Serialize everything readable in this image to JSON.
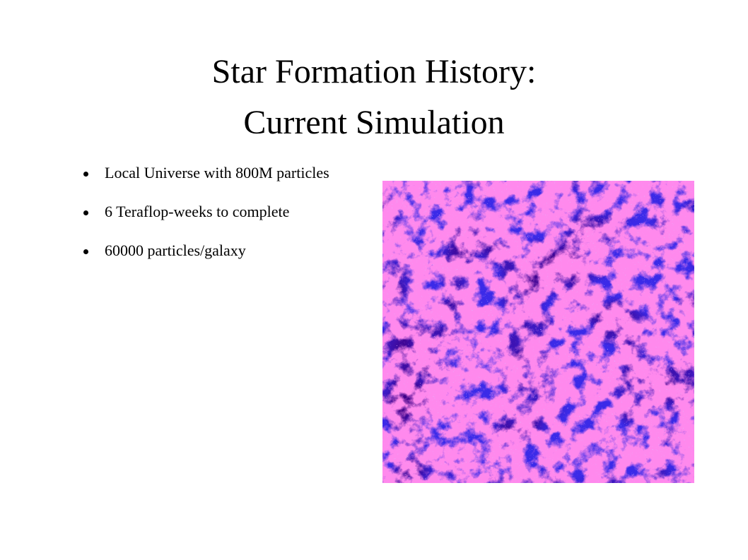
{
  "title": {
    "lines": [
      "Star Formation History:",
      "Current Simulation"
    ]
  },
  "bullets": [
    "Local Universe with 800M particles",
    "6 Teraflop-weeks to complete",
    "60000 particles/galaxy"
  ]
}
